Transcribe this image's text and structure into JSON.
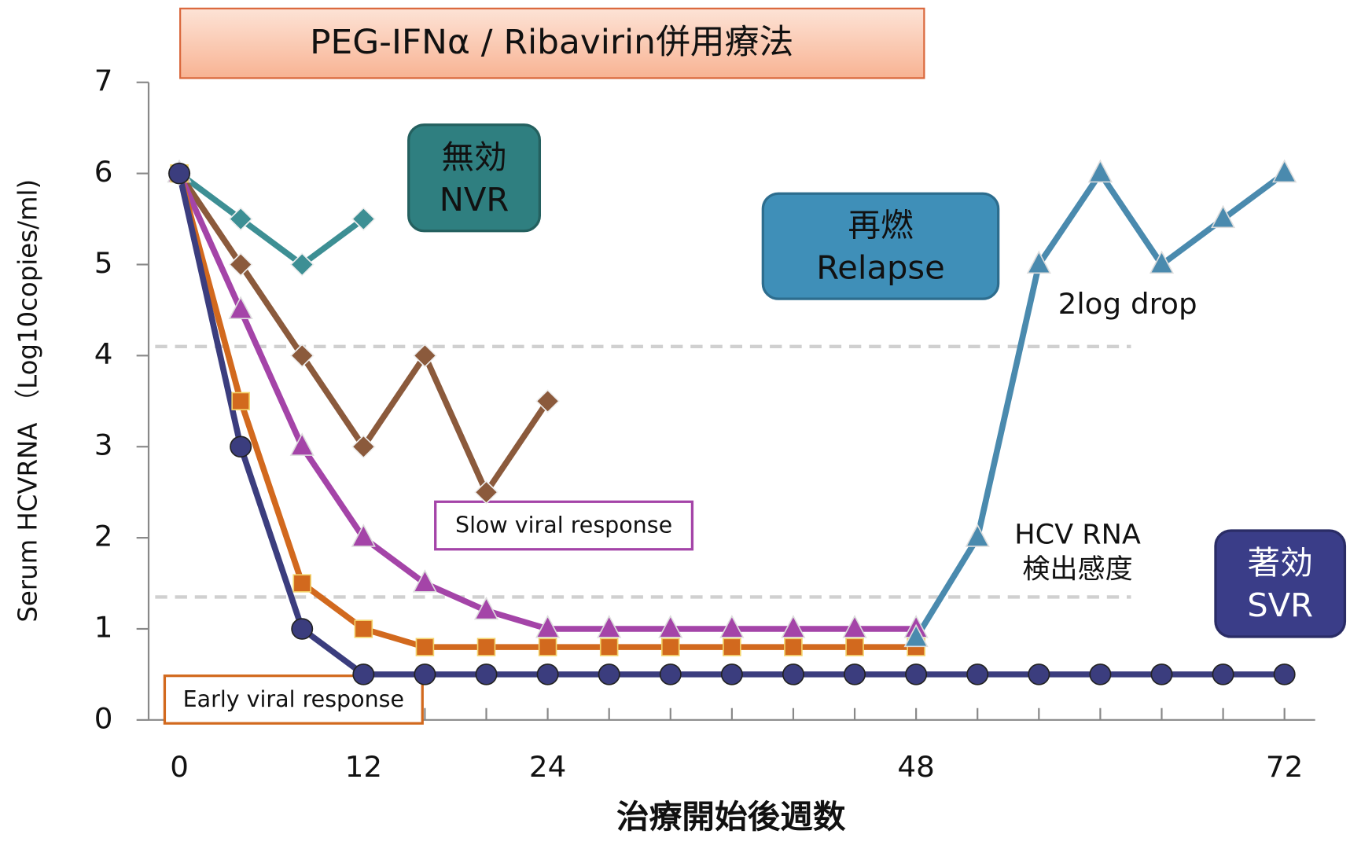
{
  "chart_data": {
    "type": "line",
    "title": "PEG-IFNα / Ribavirin併用療法",
    "xlabel": "治療開始後週数",
    "ylabel": "Serum HCVRNA （Log10copies/ml)",
    "xlim": [
      -2,
      74
    ],
    "ylim": [
      0,
      7
    ],
    "xticks": [
      0,
      12,
      24,
      48,
      72
    ],
    "xminor_ticks": [
      4,
      8,
      12,
      16,
      20,
      24,
      28,
      32,
      36,
      40,
      44,
      48,
      52,
      56,
      60,
      64,
      68,
      72
    ],
    "yticks": [
      0,
      1,
      2,
      3,
      4,
      5,
      6,
      7
    ],
    "reference_lines": [
      4.1,
      1.35
    ],
    "series": [
      {
        "color": "#3d8f94",
        "marker": "diamond",
        "x": [
          0,
          4,
          8,
          12
        ],
        "values": [
          6,
          5.5,
          5,
          5.5
        ]
      },
      {
        "color": "#8b5a3c",
        "marker": "diamond",
        "x": [
          0,
          4,
          8,
          12,
          16,
          20,
          24
        ],
        "values": [
          6,
          5,
          4,
          3,
          4,
          2.5,
          3.5
        ]
      },
      {
        "color": "#a444a8",
        "marker": "triangle",
        "x": [
          0,
          4,
          8,
          12,
          16,
          20,
          24,
          28,
          32,
          36,
          40,
          44,
          48
        ],
        "values": [
          6,
          4.5,
          3,
          2,
          1.5,
          1.2,
          1,
          1,
          1,
          1,
          1,
          1,
          1
        ]
      },
      {
        "color": "#d2691e",
        "marker": "square",
        "x": [
          0,
          4,
          8,
          12,
          16,
          20,
          24,
          28,
          32,
          36,
          40,
          44,
          48
        ],
        "values": [
          6,
          3.5,
          1.5,
          1,
          0.8,
          0.8,
          0.8,
          0.8,
          0.8,
          0.8,
          0.8,
          0.8,
          0.8
        ]
      },
      {
        "color": "#3b3d7e",
        "marker": "circle",
        "x": [
          0,
          4,
          8,
          12,
          16,
          20,
          24,
          28,
          32,
          36,
          40,
          44,
          48,
          52,
          56,
          60,
          64,
          68,
          72
        ],
        "values": [
          6,
          3,
          1,
          0.5,
          0.5,
          0.5,
          0.5,
          0.5,
          0.5,
          0.5,
          0.5,
          0.5,
          0.5,
          0.5,
          0.5,
          0.5,
          0.5,
          0.5,
          0.5
        ]
      },
      {
        "color": "#4a8aae",
        "marker": "triangle",
        "x": [
          48,
          52,
          56,
          60,
          64,
          68,
          72
        ],
        "values": [
          0.9,
          2,
          5,
          6,
          5,
          5.5,
          6
        ]
      }
    ],
    "annotations": [
      {
        "lines": [
          "無効",
          "NVR"
        ]
      },
      {
        "lines": [
          "再燃",
          "Relapse"
        ]
      },
      {
        "lines": [
          "著効",
          "SVR"
        ]
      },
      {
        "lines": [
          "Slow viral response"
        ]
      },
      {
        "lines": [
          "Early viral response"
        ]
      },
      {
        "lines": [
          "2log drop"
        ]
      },
      {
        "lines": [
          "HCV RNA",
          "検出感度"
        ]
      }
    ]
  }
}
